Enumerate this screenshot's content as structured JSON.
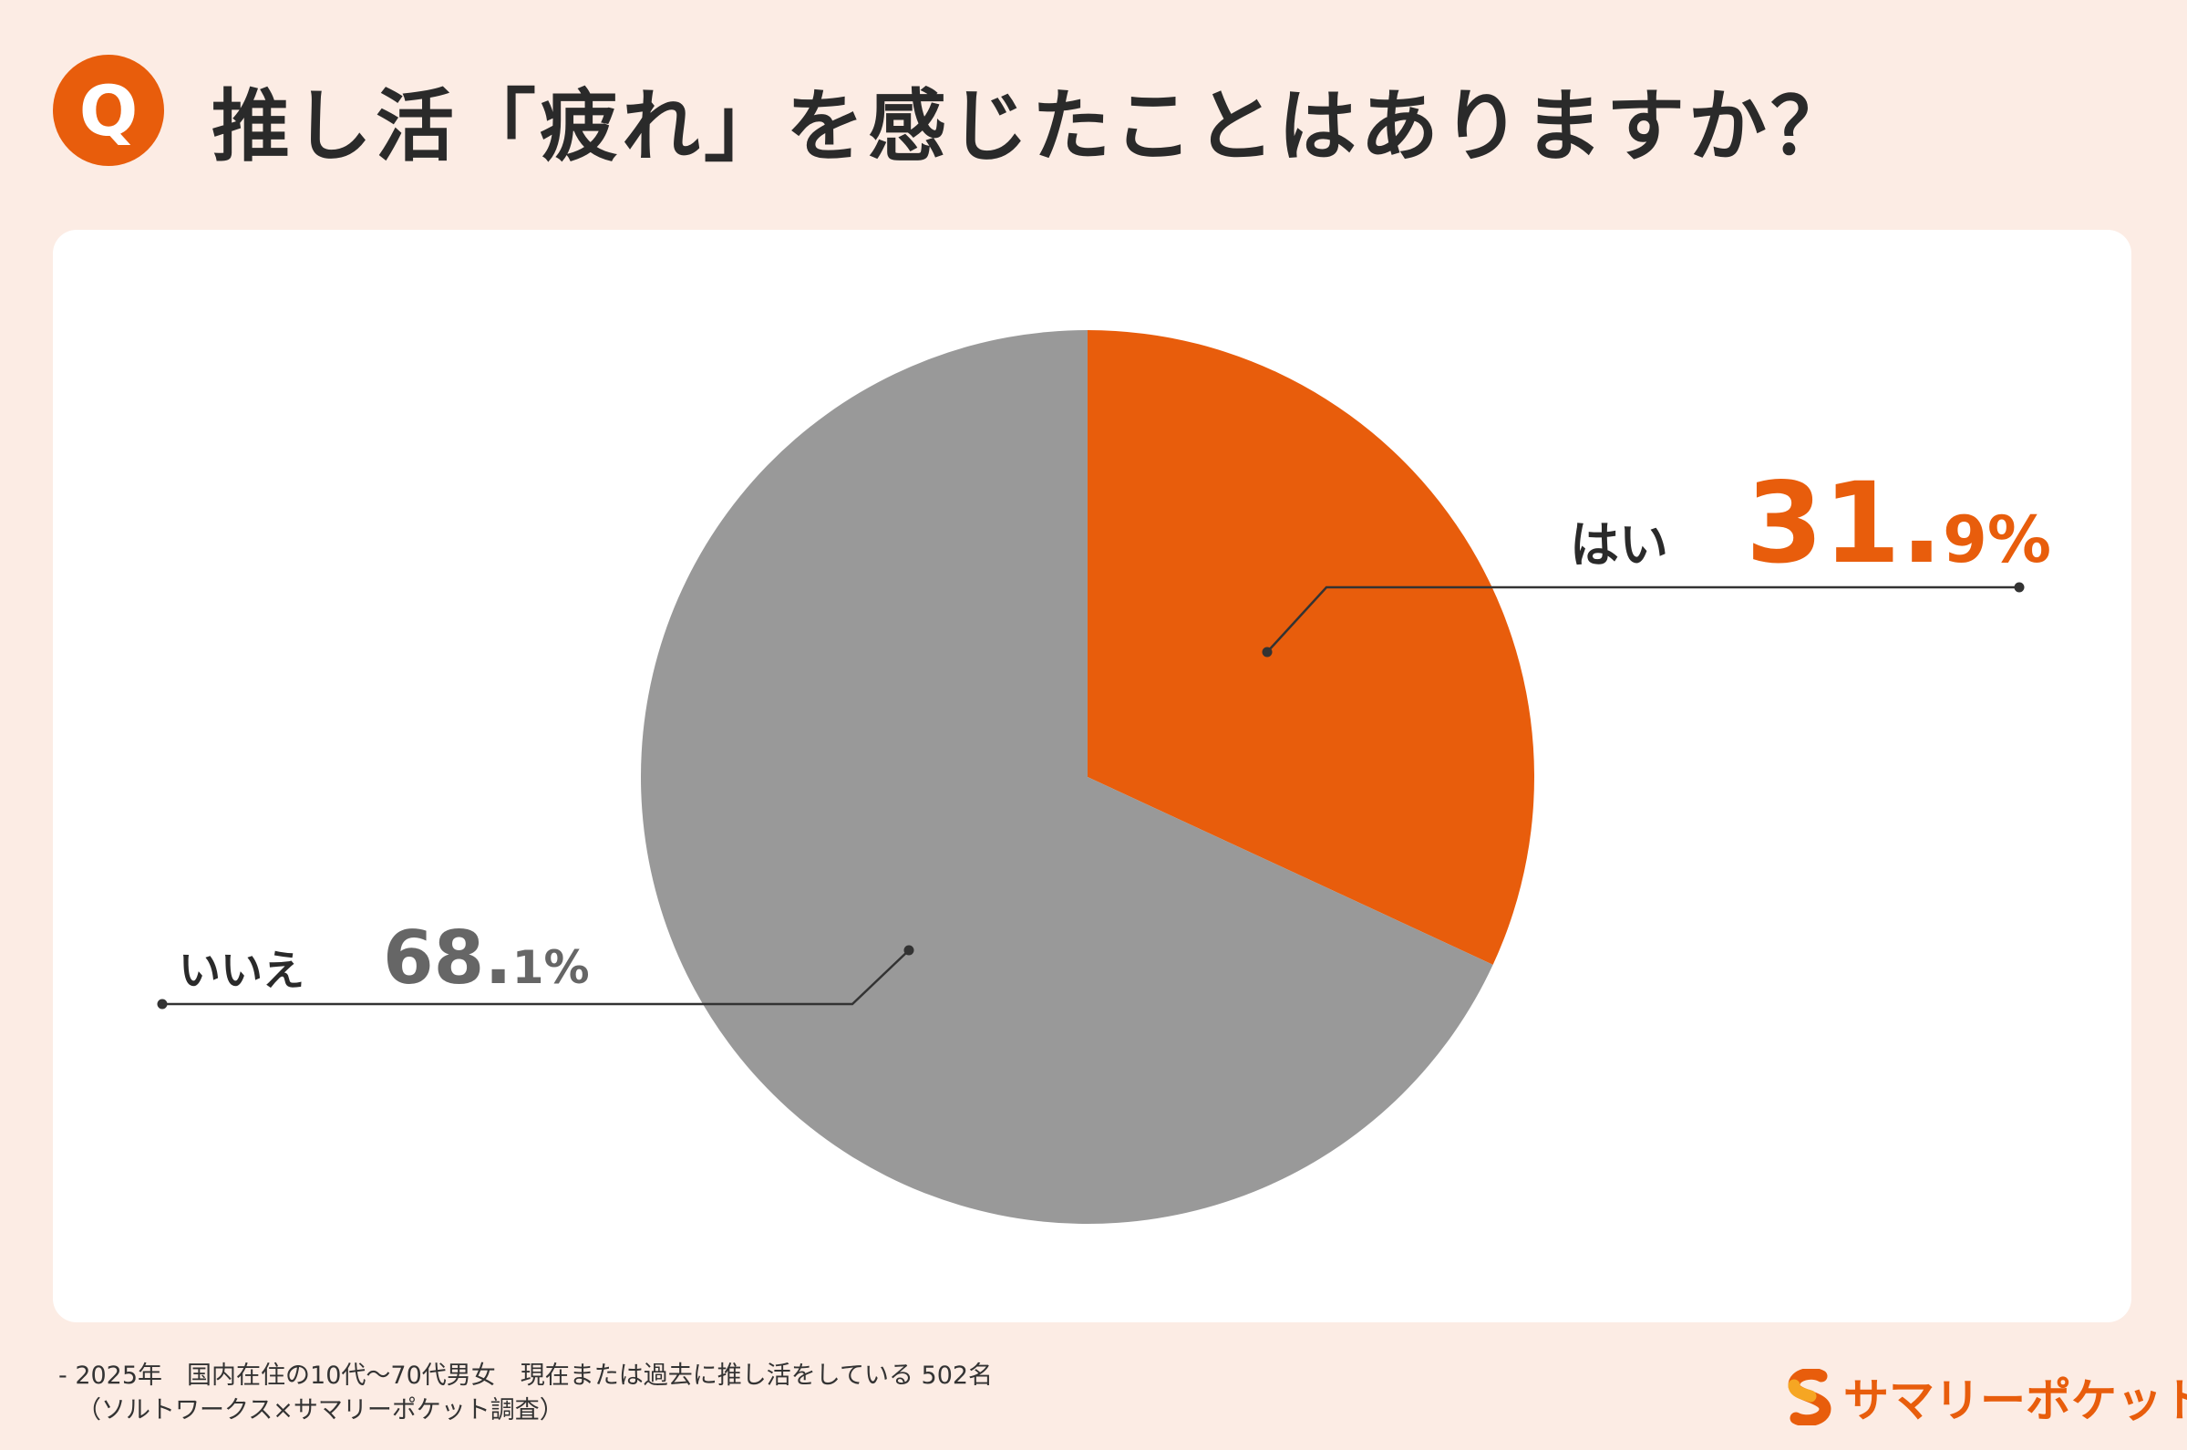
{
  "header": {
    "badge": "Q",
    "title": "推し活「疲れ」を感じたことはありますか？"
  },
  "chart_data": {
    "type": "pie",
    "title": "推し活「疲れ」を感じたことはありますか？",
    "slices": [
      {
        "label": "はい",
        "value": 31.9,
        "int_part": "31.",
        "dec_part": "9%",
        "color": "#e85d0c",
        "label_color": "#e85d0c"
      },
      {
        "label": "いいえ",
        "value": 68.1,
        "int_part": "68.",
        "dec_part": "1%",
        "color": "#999999",
        "label_color": "#666666"
      }
    ],
    "start_angle": "12 o'clock, clockwise"
  },
  "footer": {
    "line1": "- 2025年　国内在住の10代～70代男女　現在または過去に推し活をしている 502名",
    "line2": "（ソルトワークス×サマリーポケット調査）",
    "brand": "サマリーポケット",
    "brand_icon": "s-logo-icon",
    "brand_color": "#e85d0c"
  }
}
